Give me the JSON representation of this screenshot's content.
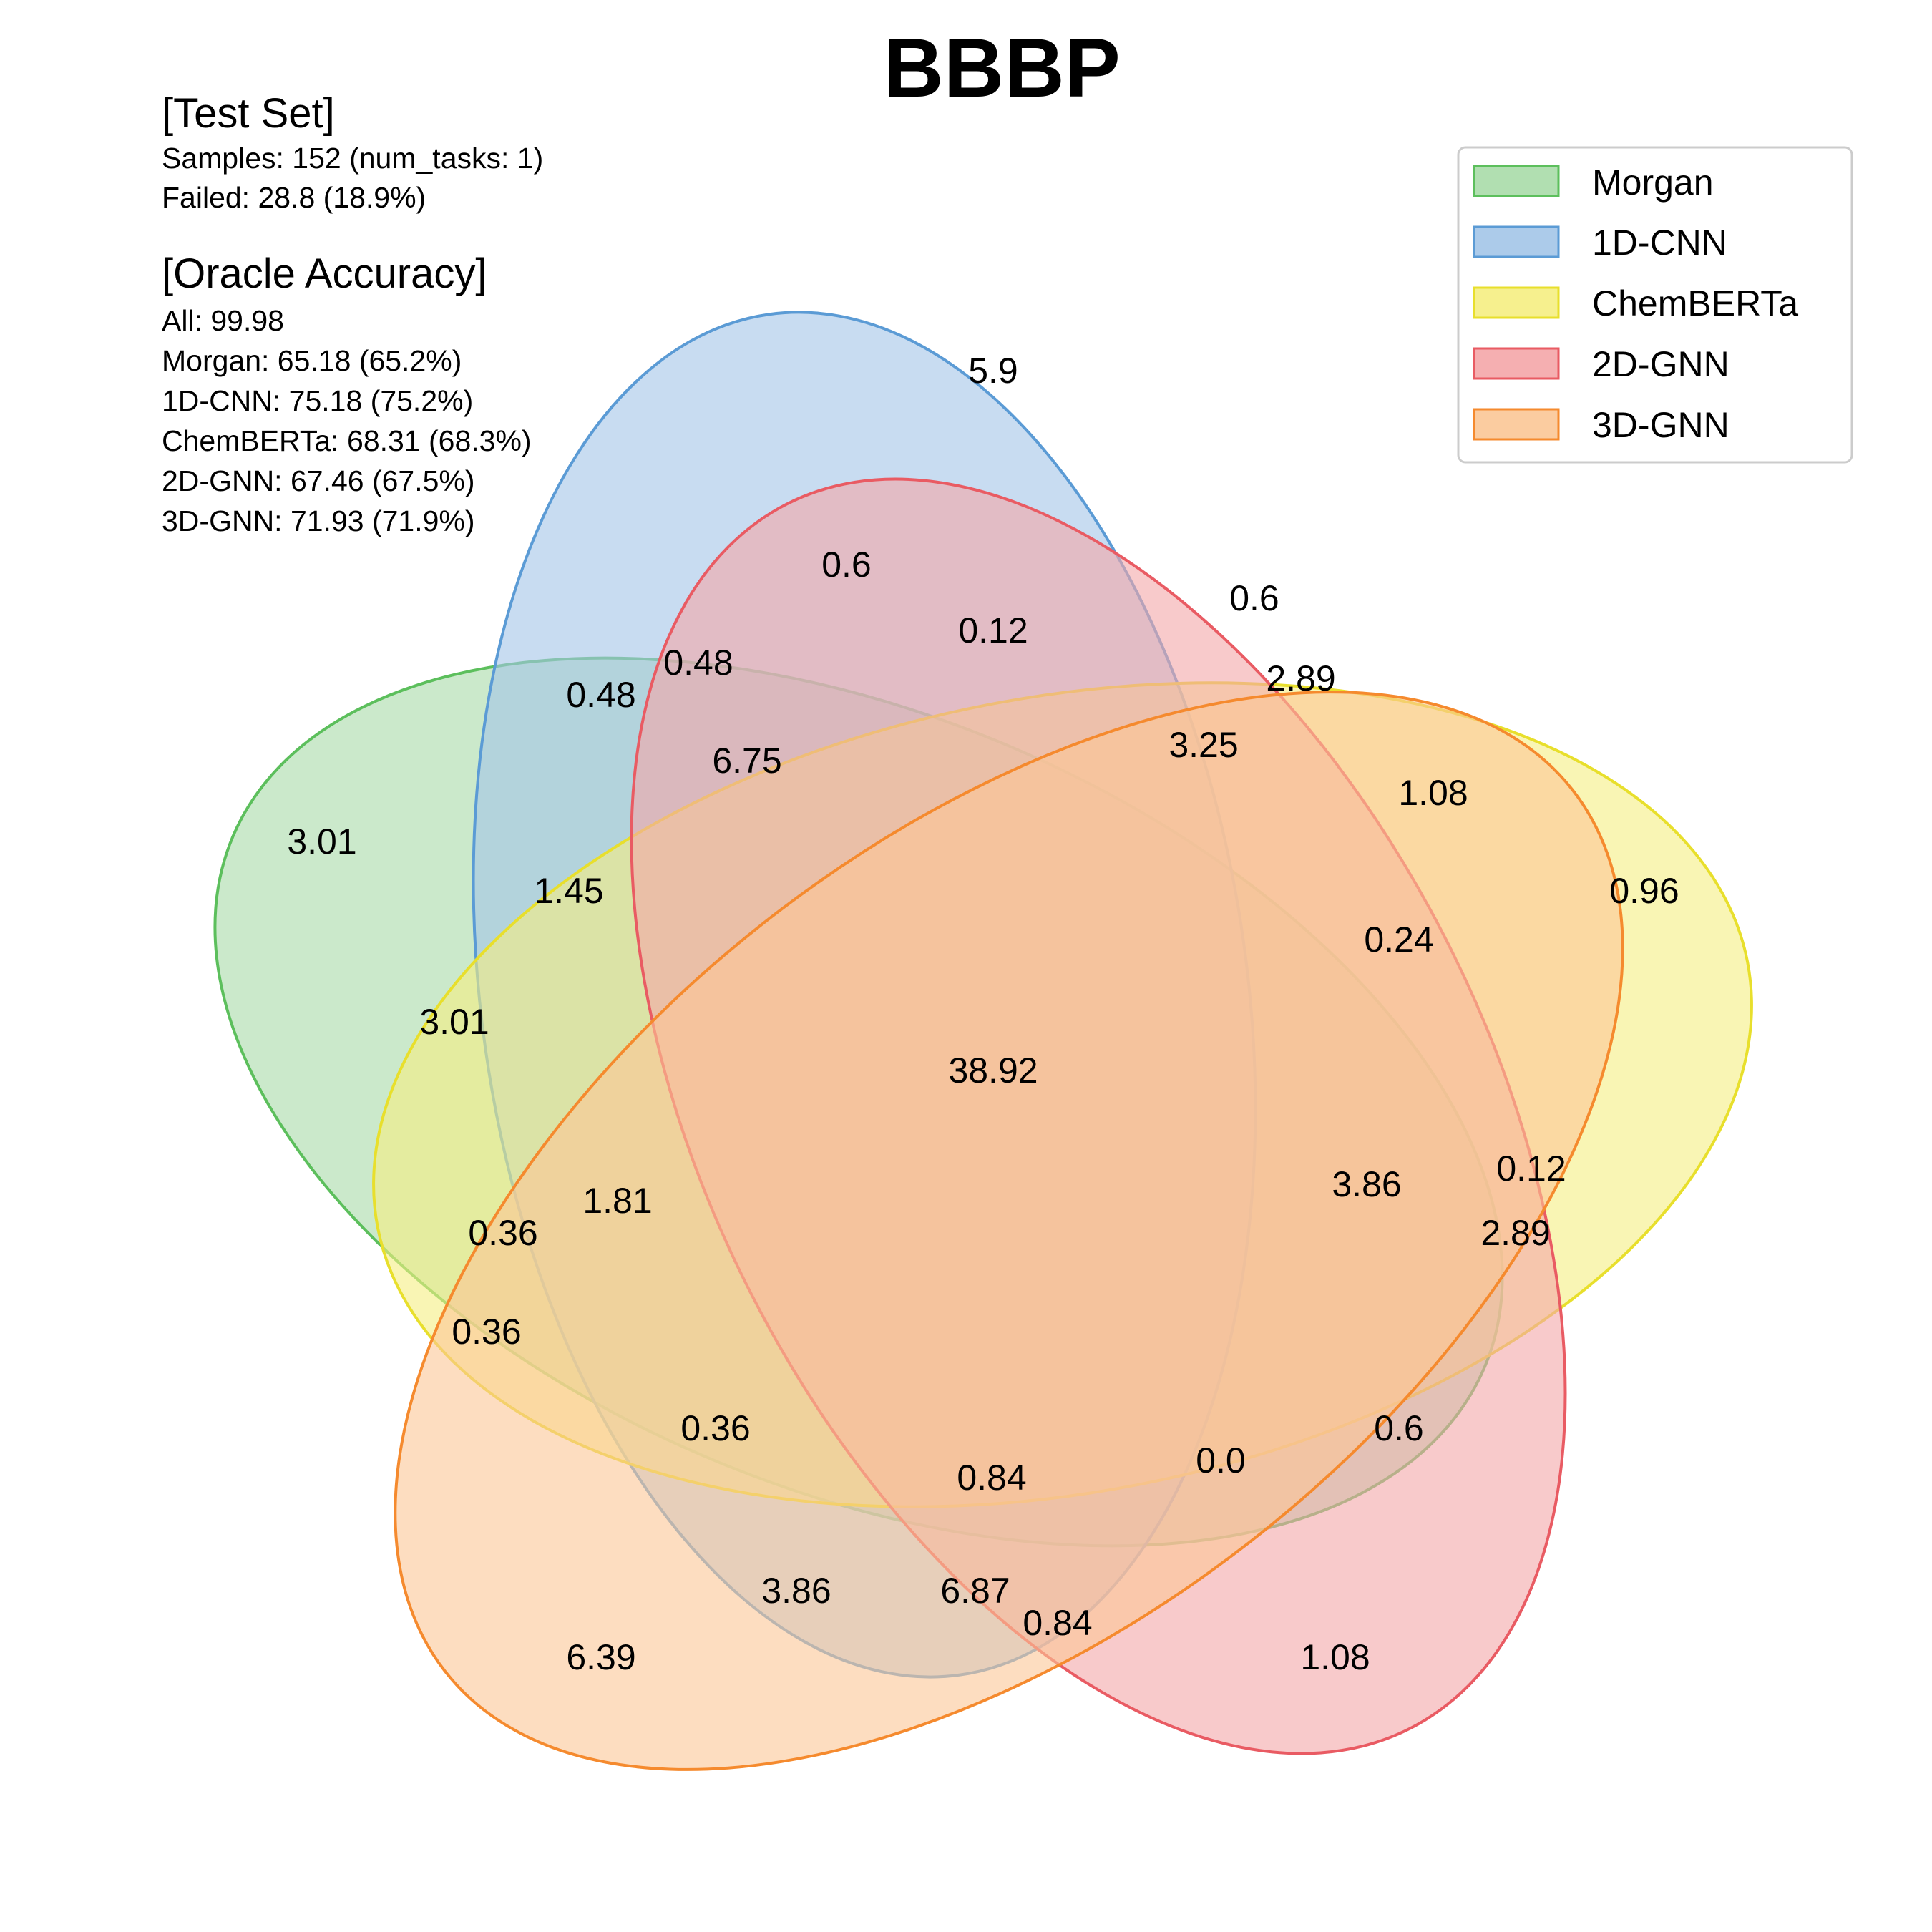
{
  "title": "BBBP",
  "test_set": {
    "heading": "[Test Set]",
    "lines": [
      "Samples: 152 (num_tasks: 1)",
      "Failed: 28.8 (18.9%)"
    ]
  },
  "oracle": {
    "heading": "[Oracle Accuracy]",
    "lines": [
      "All: 99.98",
      "Morgan: 65.18 (65.2%)",
      "1D-CNN: 75.18 (75.2%)",
      "ChemBERTa: 68.31 (68.3%)",
      "2D-GNN: 67.46 (67.5%)",
      "3D-GNN: 71.93 (71.9%)"
    ]
  },
  "sets": [
    {
      "name": "Morgan",
      "fill": "#a8dba8",
      "stroke": "#5cbf5c"
    },
    {
      "name": "1D-CNN",
      "fill": "#a3c5e8",
      "stroke": "#5b9bd5"
    },
    {
      "name": "ChemBERTa",
      "fill": "#f5ee82",
      "stroke": "#e8df2c"
    },
    {
      "name": "2D-GNN",
      "fill": "#f4a6a8",
      "stroke": "#e95b63"
    },
    {
      "name": "3D-GNN",
      "fill": "#fbc796",
      "stroke": "#f58a2e"
    }
  ],
  "regions": [
    "5.9",
    "0.6",
    "0.6",
    "0.12",
    "0.48",
    "0.48",
    "2.89",
    "6.75",
    "3.25",
    "1.08",
    "3.01",
    "1.45",
    "0.96",
    "0.24",
    "3.01",
    "38.92",
    "0.12",
    "3.86",
    "1.81",
    "0.36",
    "2.89",
    "0.36",
    "0.36",
    "0.6",
    "0.0",
    "0.84",
    "3.86",
    "6.87",
    "0.84",
    "6.39",
    "1.08"
  ]
}
